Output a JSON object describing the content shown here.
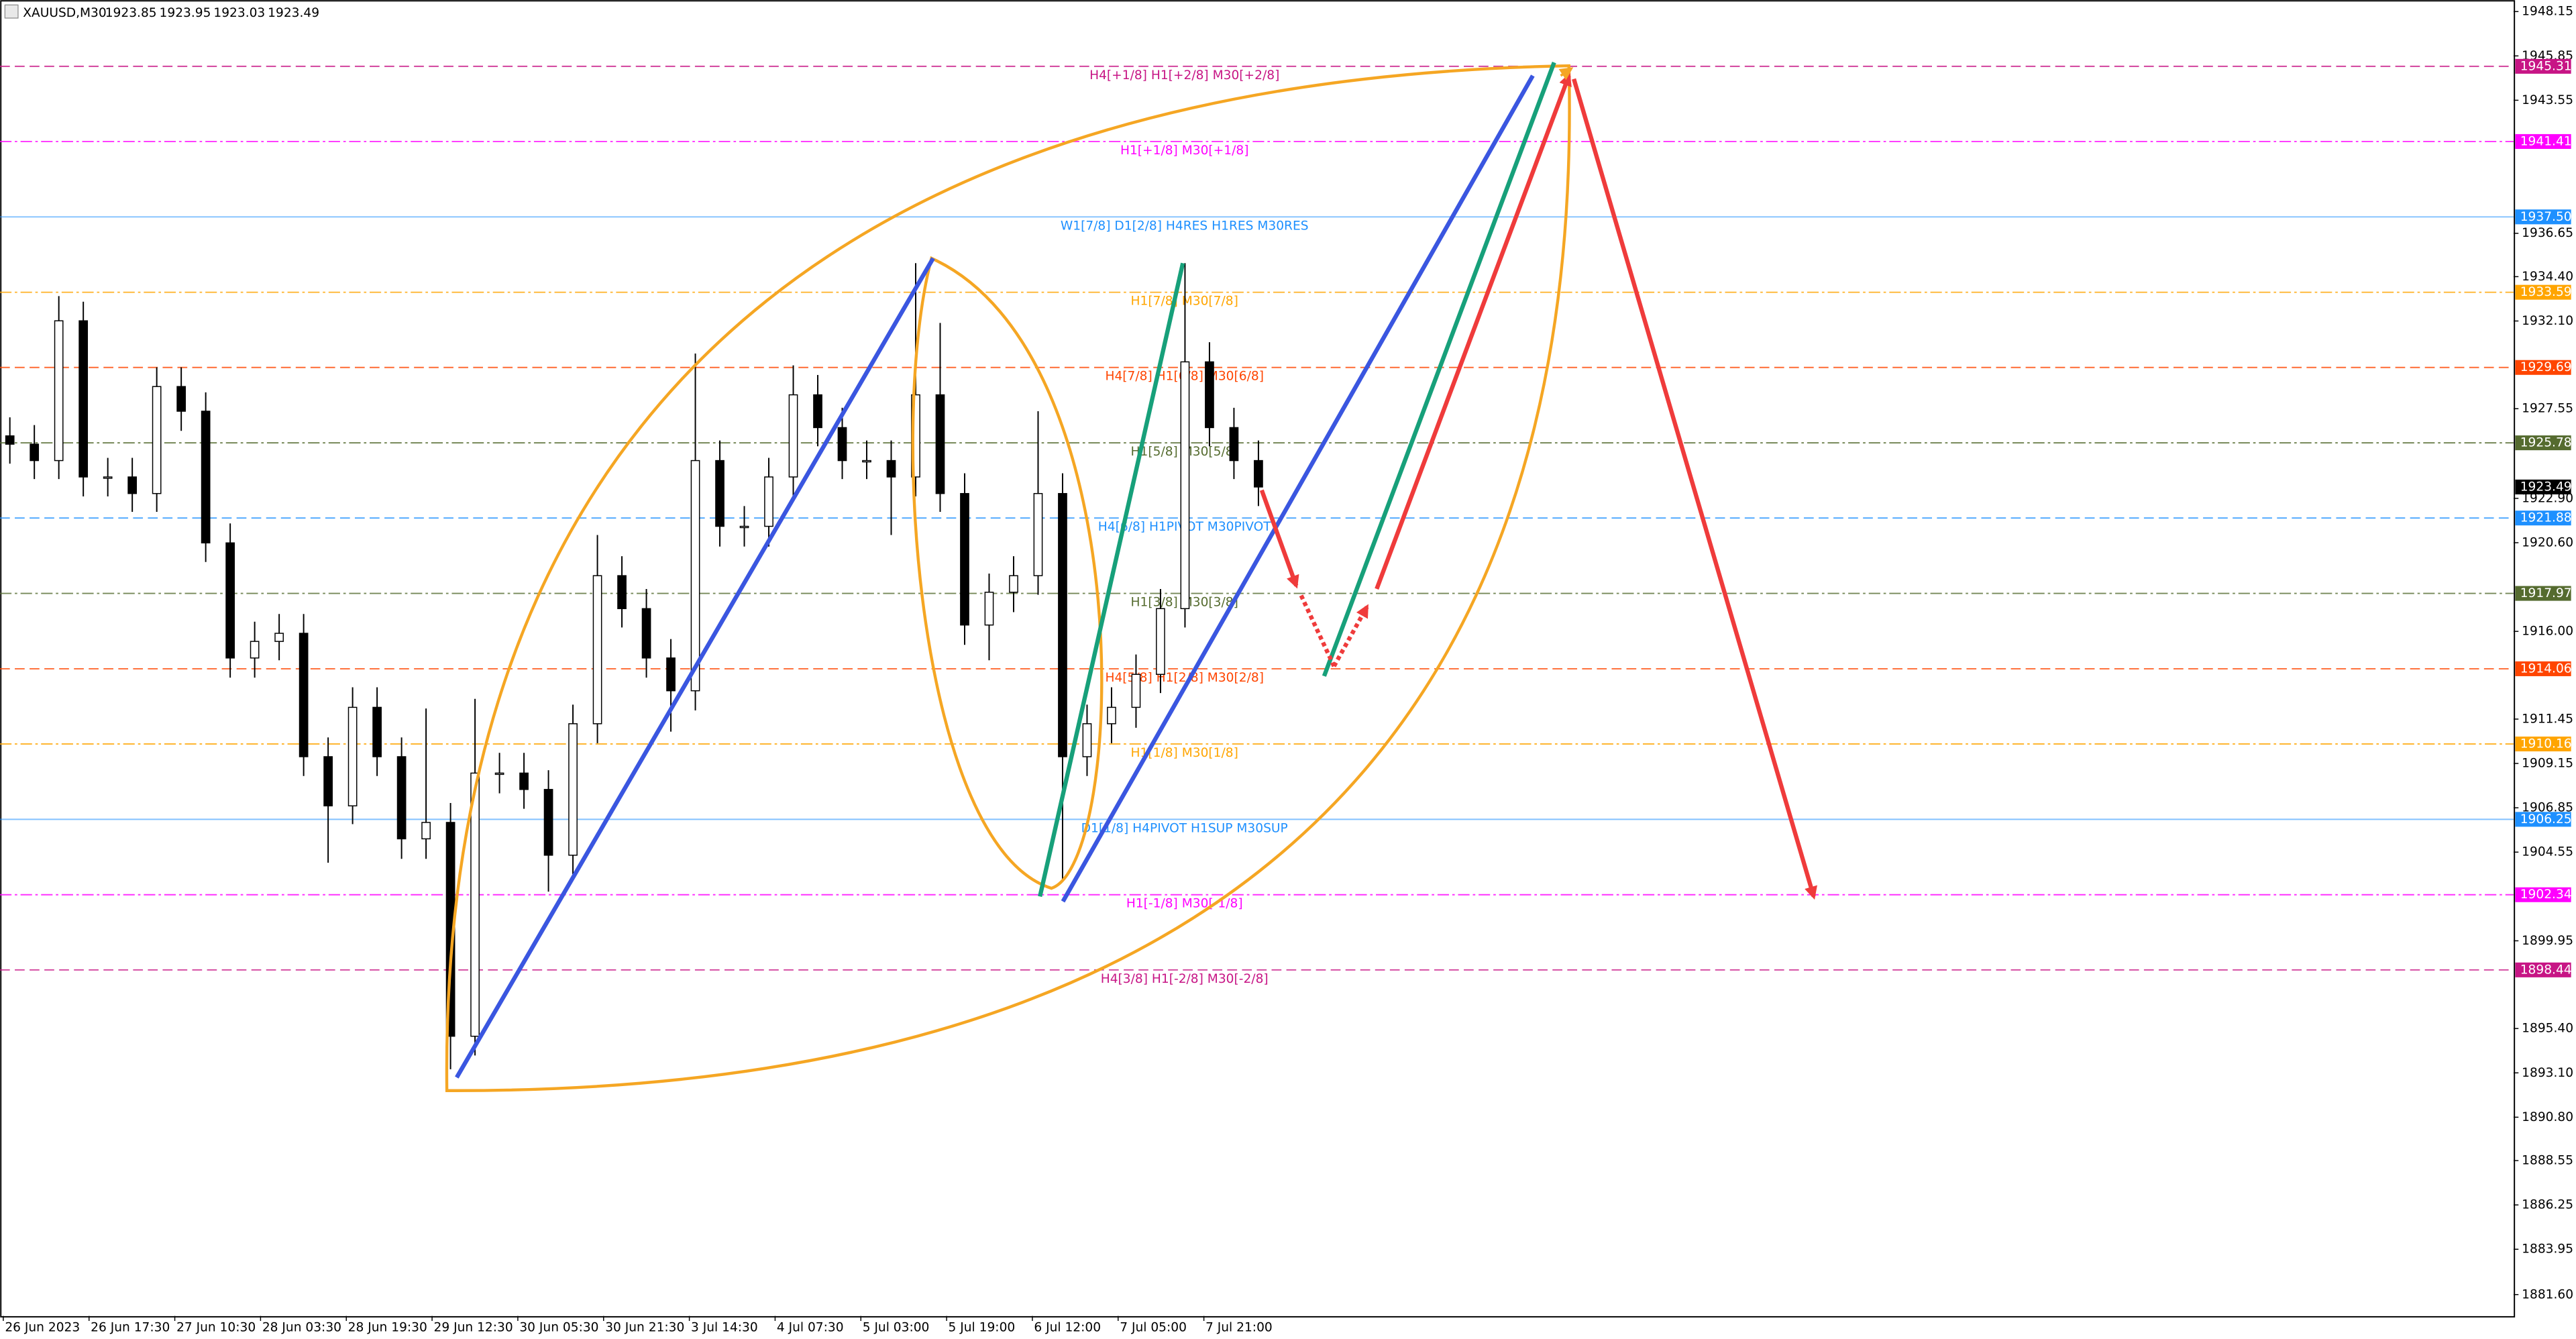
{
  "header": {
    "symbol": "XAUUSD,M30",
    "quote": [
      1923.85,
      1923.95,
      1923.03,
      1923.49
    ]
  },
  "chart_data": {
    "type": "candlestick",
    "grid": false,
    "ylim": [
      1880.49,
      1948.75
    ],
    "yticks": [
      1948.15,
      1945.85,
      1943.55,
      1936.65,
      {
        "value": 1934.4,
        "label": "1934.40"
      },
      {
        "value": 1932.1,
        "label": "1932.10"
      },
      1927.55,
      {
        "value": 1922.9,
        "label": "1922.90"
      },
      {
        "value": 1920.6,
        "label": "1920.60"
      },
      {
        "value": 1916,
        "label": "1916.00"
      },
      1911.45,
      1909.15,
      1906.85,
      1904.55,
      1899.95,
      {
        "value": 1895.4,
        "label": "1895.40"
      },
      {
        "value": 1893.1,
        "label": "1893.10"
      },
      {
        "value": 1890.8,
        "label": "1890.80"
      },
      1888.55,
      1886.25,
      1883.95,
      {
        "value": 1881.6,
        "label": "1881.60"
      }
    ],
    "time_labels": [
      "26 Jun 2023",
      "26 Jun 17:30",
      "27 Jun 10:30",
      "28 Jun 03:30",
      "28 Jun 19:30",
      "29 Jun 12:30",
      "30 Jun 05:30",
      "30 Jun 21:30",
      "3 Jul 14:30",
      "4 Jul 07:30",
      "5 Jul 03:00",
      "5 Jul 19:00",
      "6 Jul 12:00",
      "7 Jul 05:00",
      "7 Jul 21:00"
    ],
    "up_color": "#ffffff",
    "down_color": "#000000",
    "candles": {
      "open": [
        1926.14,
        1925.71,
        1924.86,
        1932.11,
        1924.01,
        1924.01,
        1923.15,
        1928.7,
        1927.42,
        1920.59,
        1914.62,
        1915.48,
        1915.9,
        1909.5,
        1906.95,
        1912.06,
        1909.5,
        1905.24,
        1906.09,
        1895.0,
        1908.65,
        1908.65,
        1907.8,
        1904.39,
        1911.21,
        1918.89,
        1917.18,
        1914.62,
        1912.92,
        1924.86,
        1921.45,
        1921.45,
        1924.01,
        1928.27,
        1926.57,
        1924.86,
        1924.86,
        1924.01,
        1928.27,
        1923.15,
        1916.33,
        1918.03,
        1918.89,
        1923.15,
        1909.5,
        1911.21,
        1912.06,
        1913.77,
        1917.18,
        1929.98,
        1926.57,
        1924.86
      ],
      "high": [
        1927.1,
        1926.7,
        1933.39,
        1933.1,
        1925.0,
        1925.0,
        1929.7,
        1929.7,
        1928.4,
        1921.6,
        1916.5,
        1916.9,
        1916.9,
        1910.5,
        1913.1,
        1913.1,
        1910.5,
        1912.0,
        1907.1,
        1912.5,
        1909.7,
        1909.7,
        1908.8,
        1912.2,
        1921.0,
        1919.9,
        1918.2,
        1915.6,
        1930.41,
        1925.9,
        1922.5,
        1925.0,
        1929.8,
        1929.3,
        1927.6,
        1925.9,
        1925.9,
        1935.1,
        1932.0,
        1924.2,
        1919.0,
        1919.9,
        1927.42,
        1924.2,
        1912.2,
        1913.1,
        1914.8,
        1918.2,
        1935.1,
        1931.0,
        1927.6,
        1925.9
      ],
      "low": [
        1924.7,
        1923.9,
        1923.9,
        1923.0,
        1923.0,
        1922.2,
        1922.2,
        1926.4,
        1919.6,
        1913.6,
        1913.6,
        1914.5,
        1908.5,
        1904.0,
        1906.0,
        1908.5,
        1904.2,
        1904.2,
        1893.29,
        1894.0,
        1907.6,
        1906.8,
        1902.5,
        1903.4,
        1910.2,
        1916.2,
        1913.6,
        1910.8,
        1911.9,
        1920.4,
        1920.4,
        1920.4,
        1923.0,
        1925.6,
        1923.9,
        1923.9,
        1921.0,
        1923.0,
        1922.2,
        1915.3,
        1914.5,
        1917.0,
        1917.9,
        1903.11,
        1908.5,
        1910.2,
        1911.0,
        1912.8,
        1916.2,
        1925.6,
        1923.9,
        1922.5
      ],
      "close": [
        1925.71,
        1924.86,
        1932.11,
        1924.01,
        1924.01,
        1923.15,
        1928.7,
        1927.42,
        1920.59,
        1914.62,
        1915.48,
        1915.9,
        1909.5,
        1906.95,
        1912.06,
        1909.5,
        1905.24,
        1906.09,
        1895.0,
        1908.65,
        1908.65,
        1907.8,
        1904.39,
        1911.21,
        1918.89,
        1917.18,
        1914.62,
        1912.92,
        1924.86,
        1921.45,
        1921.45,
        1924.01,
        1928.27,
        1926.57,
        1924.86,
        1924.86,
        1924.01,
        1928.27,
        1923.15,
        1916.33,
        1918.03,
        1918.89,
        1923.15,
        1909.5,
        1911.21,
        1912.06,
        1913.77,
        1917.18,
        1929.98,
        1926.57,
        1924.86,
        1923.49
      ]
    },
    "current_price": 1923.49,
    "levels": [
      {
        "value": 1945.31,
        "label": "H4[+1/8] H1[+2/8] M30[+2/8]",
        "color": "#c71585",
        "style": "dashed"
      },
      {
        "value": 1941.41,
        "label": "H1[+1/8] M30[+1/8]",
        "color": "#ff00ff",
        "style": "dashdot"
      },
      {
        "value": 1937.5,
        "value_label": "1937.50",
        "label": "W1[7/8] D1[2/8] H4RES H1RES M30RES",
        "color": "#1e90ff",
        "style": "solid"
      },
      {
        "value": 1933.59,
        "label": "H1[7/8] M30[7/8]",
        "color": "#ffa500",
        "style": "dashdot"
      },
      {
        "value": 1929.69,
        "label": "H4[7/8] H1[6/8] M30[6/8]",
        "color": "#ff4500",
        "style": "dashed"
      },
      {
        "value": 1925.78,
        "label": "H1[5/8] M30[5/8]",
        "color": "#556b2f",
        "style": "dashdot"
      },
      {
        "value": 1921.88,
        "label": "H4[6/8] H1PIVOT M30PIVOT",
        "color": "#1e90ff",
        "style": "dashed"
      },
      {
        "value": 1917.97,
        "label": "H1[3/8] M30[3/8]",
        "color": "#556b2f",
        "style": "dashdot"
      },
      {
        "value": 1914.06,
        "label": "H4[5/8] H1[2/8] M30[2/8]",
        "color": "#ff4500",
        "style": "dashed"
      },
      {
        "value": 1910.16,
        "label": "H1[1/8] M30[1/8]",
        "color": "#ffa500",
        "style": "dashdot"
      },
      {
        "value": 1906.25,
        "label": "D1[1/8] H4PIVOT H1SUP M30SUP",
        "color": "#1e90ff",
        "style": "solid"
      },
      {
        "value": 1902.34,
        "label": "H1[-1/8] M30[-1/8]",
        "color": "#ff00ff",
        "style": "dashdot"
      },
      {
        "value": 1898.44,
        "label": "H4[3/8] H1[-2/8] M30[-2/8]",
        "color": "#c71585",
        "style": "dashed"
      }
    ]
  }
}
